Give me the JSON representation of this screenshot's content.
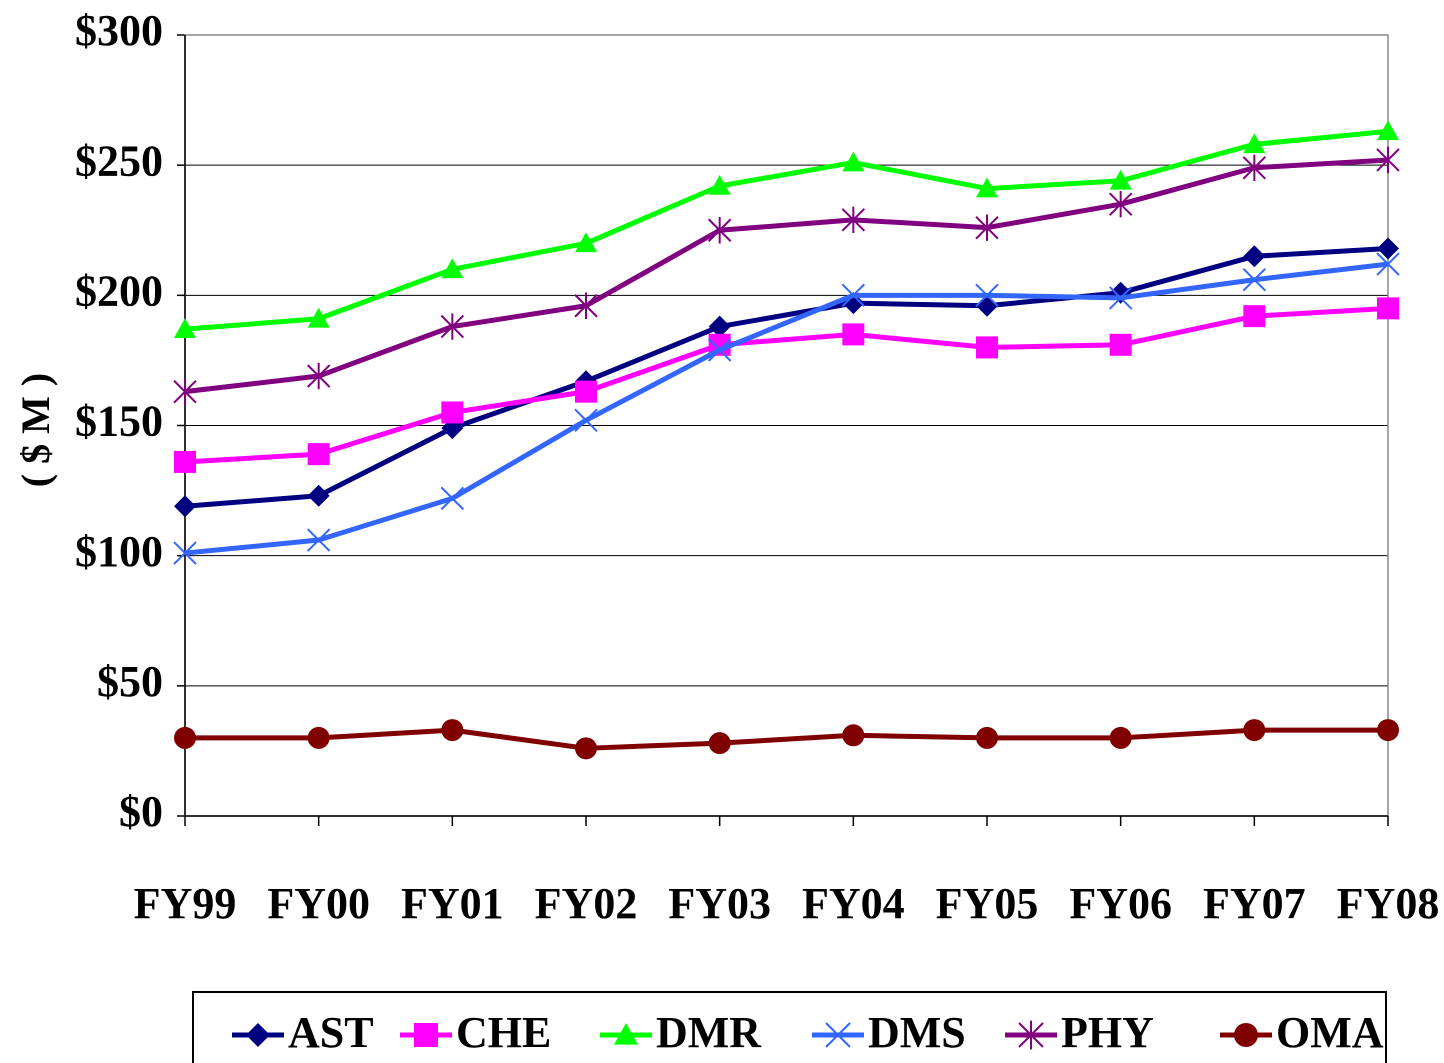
{
  "chart_data": {
    "type": "line",
    "y_axis_label": "( $ M )",
    "categories": [
      "FY99",
      "FY00",
      "FY01",
      "FY02",
      "FY03",
      "FY04",
      "FY05",
      "FY06",
      "FY07",
      "FY08"
    ],
    "ylim": [
      0,
      300
    ],
    "yticks": [
      {
        "value": 0,
        "label": "$0"
      },
      {
        "value": 50,
        "label": "$50"
      },
      {
        "value": 100,
        "label": "$100"
      },
      {
        "value": 150,
        "label": "$150"
      },
      {
        "value": 200,
        "label": "$200"
      },
      {
        "value": 250,
        "label": "$250"
      },
      {
        "value": 300,
        "label": "$300"
      }
    ],
    "grid": true,
    "legend": "bottom",
    "series": [
      {
        "name": "AST",
        "color": "#000080",
        "marker": "diamond",
        "values": [
          119,
          123,
          149,
          167,
          188,
          197,
          196,
          201,
          215,
          218
        ]
      },
      {
        "name": "CHE",
        "color": "#ff00ff",
        "marker": "square",
        "values": [
          136,
          139,
          155,
          163,
          181,
          185,
          180,
          181,
          192,
          195
        ]
      },
      {
        "name": "DMR",
        "color": "#00ff00",
        "marker": "triangle",
        "values": [
          187,
          191,
          210,
          220,
          242,
          251,
          241,
          244,
          258,
          263
        ]
      },
      {
        "name": "DMS",
        "color": "#3366ff",
        "marker": "x",
        "values": [
          101,
          106,
          122,
          152,
          179,
          200,
          200,
          199,
          206,
          212
        ]
      },
      {
        "name": "PHY",
        "color": "#800080",
        "marker": "star",
        "values": [
          163,
          169,
          188,
          196,
          225,
          229,
          226,
          235,
          249,
          252
        ]
      },
      {
        "name": "OMA",
        "color": "#800000",
        "marker": "circle",
        "values": [
          30,
          30,
          33,
          26,
          28,
          31,
          30,
          30,
          33,
          33
        ]
      }
    ]
  }
}
